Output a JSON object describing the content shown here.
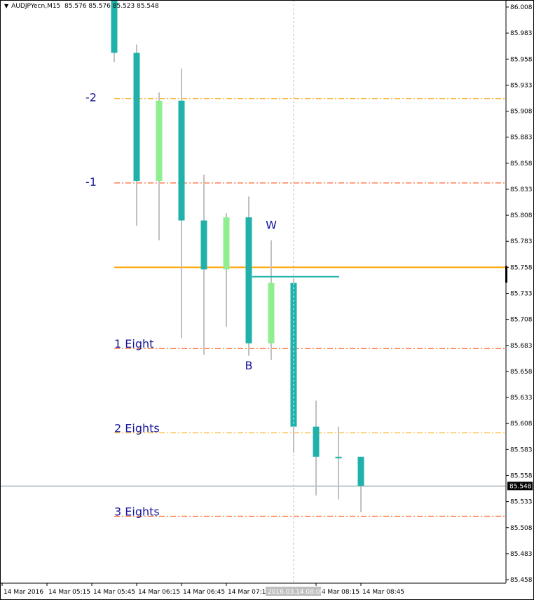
{
  "header": {
    "symbol": "AUDJPYecn,M15",
    "ohlc_text": "85.576 85.576 85.523 85.548",
    "menu_icon": "triangle-down-icon"
  },
  "chart_data": {
    "type": "candlestick",
    "title": "AUDJPYecn,M15",
    "ylim": [
      85.458,
      86.008
    ],
    "y_ticks": [
      "86.008",
      "85.983",
      "85.958",
      "85.933",
      "85.908",
      "85.883",
      "85.858",
      "85.833",
      "85.808",
      "85.783",
      "85.758",
      "85.733",
      "85.708",
      "85.683",
      "85.658",
      "85.633",
      "85.608",
      "85.583",
      "85.558",
      "85.533",
      "85.508",
      "85.483",
      "85.458"
    ],
    "x_ticks": [
      {
        "time": "04:45",
        "label": "14 Mar 2016"
      },
      {
        "time": "05:15",
        "label": "14 Mar 05:15"
      },
      {
        "time": "05:45",
        "label": "14 Mar 05:45"
      },
      {
        "time": "06:15",
        "label": "14 Mar 06:15"
      },
      {
        "time": "06:45",
        "label": "14 Mar 06:45"
      },
      {
        "time": "07:15",
        "label": "14 Mar 07:15"
      },
      {
        "time": "08:15",
        "label": "14 Mar 08:15"
      },
      {
        "time": "08:45",
        "label": "14 Mar 08:45"
      }
    ],
    "crosshair": {
      "time": "08:00",
      "label": "2016.03.14 08:00"
    },
    "current_price": {
      "value": 85.548,
      "label": "85.548",
      "color": "#778899"
    },
    "colors": {
      "bull": "#90ee90",
      "bear": "#20b2aa",
      "wick": "#c0c0c0"
    },
    "candles": [
      {
        "time": "06:00",
        "open": 86.015,
        "high": 86.02,
        "low": 85.955,
        "close": 85.964
      },
      {
        "time": "06:15",
        "open": 85.964,
        "high": 85.972,
        "low": 85.798,
        "close": 85.841
      },
      {
        "time": "06:30",
        "open": 85.841,
        "high": 85.926,
        "low": 85.784,
        "close": 85.918
      },
      {
        "time": "06:45",
        "open": 85.918,
        "high": 85.949,
        "low": 85.69,
        "close": 85.803
      },
      {
        "time": "07:00",
        "open": 85.803,
        "high": 85.847,
        "low": 85.674,
        "close": 85.756
      },
      {
        "time": "07:15",
        "open": 85.756,
        "high": 85.81,
        "low": 85.701,
        "close": 85.806
      },
      {
        "time": "07:30",
        "open": 85.806,
        "high": 85.826,
        "low": 85.673,
        "close": 85.685
      },
      {
        "time": "07:45",
        "open": 85.685,
        "high": 85.784,
        "low": 85.669,
        "close": 85.743
      },
      {
        "time": "08:00",
        "open": 85.743,
        "high": 85.747,
        "low": 85.58,
        "close": 85.605
      },
      {
        "time": "08:15",
        "open": 85.605,
        "high": 85.63,
        "low": 85.539,
        "close": 85.576
      },
      {
        "time": "08:30",
        "open": 85.576,
        "high": 85.605,
        "low": 85.535,
        "close": 85.576
      },
      {
        "time": "08:45",
        "open": 85.576,
        "high": 85.576,
        "low": 85.523,
        "close": 85.548
      }
    ],
    "levels": [
      {
        "label": "-2",
        "price": 85.92,
        "color": "#f5a000",
        "style": "dashdot"
      },
      {
        "label": "-1",
        "price": 85.839,
        "color": "#ff4500",
        "style": "dashdot"
      },
      {
        "label": "",
        "price": 85.758,
        "color": "#ffa500",
        "style": "solid"
      },
      {
        "label": "1 Eight",
        "price": 85.68,
        "color": "#ff4500",
        "style": "dashdot"
      },
      {
        "label": "2 Eights",
        "price": 85.599,
        "color": "#ffa500",
        "style": "dashdot"
      },
      {
        "label": "3 Eights",
        "price": 85.519,
        "color": "#ff4500",
        "style": "dashdot"
      }
    ],
    "segment": {
      "price": 85.749,
      "from": "07:30",
      "to": "08:30",
      "color": "#20b2aa"
    },
    "annotations": [
      {
        "text": "W",
        "time": "07:45",
        "price": 85.795
      },
      {
        "text": "B",
        "time": "07:30",
        "price": 85.66
      }
    ]
  }
}
